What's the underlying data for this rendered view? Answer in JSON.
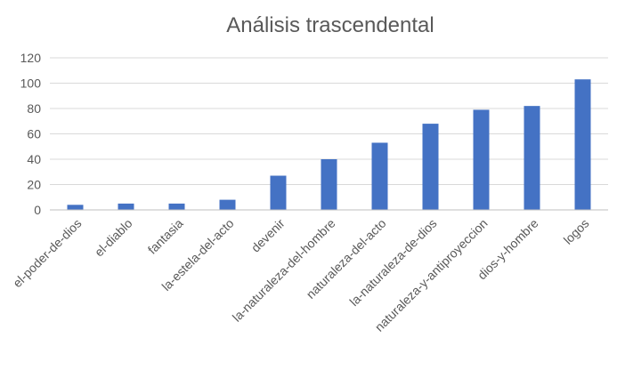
{
  "chart_data": {
    "type": "bar",
    "title": "Análisis trascendental",
    "categories": [
      "el-poder-de-dios",
      "el-diablo",
      "fantasia",
      "la-estela-del-acto",
      "devenir",
      "la-naturaleza-del-hombre",
      "naturaleza-del-acto",
      "la-naturaleza-de-dios",
      "naturaleza-y-antiproyeccion",
      "dios-y-hombre",
      "logos"
    ],
    "values": [
      4,
      5,
      5,
      8,
      27,
      40,
      53,
      68,
      79,
      82,
      103
    ],
    "ylim": [
      0,
      120
    ],
    "yticks": [
      0,
      20,
      40,
      60,
      80,
      100,
      120
    ],
    "grid": true,
    "legend": "none",
    "bar_color": "#4472c4"
  }
}
